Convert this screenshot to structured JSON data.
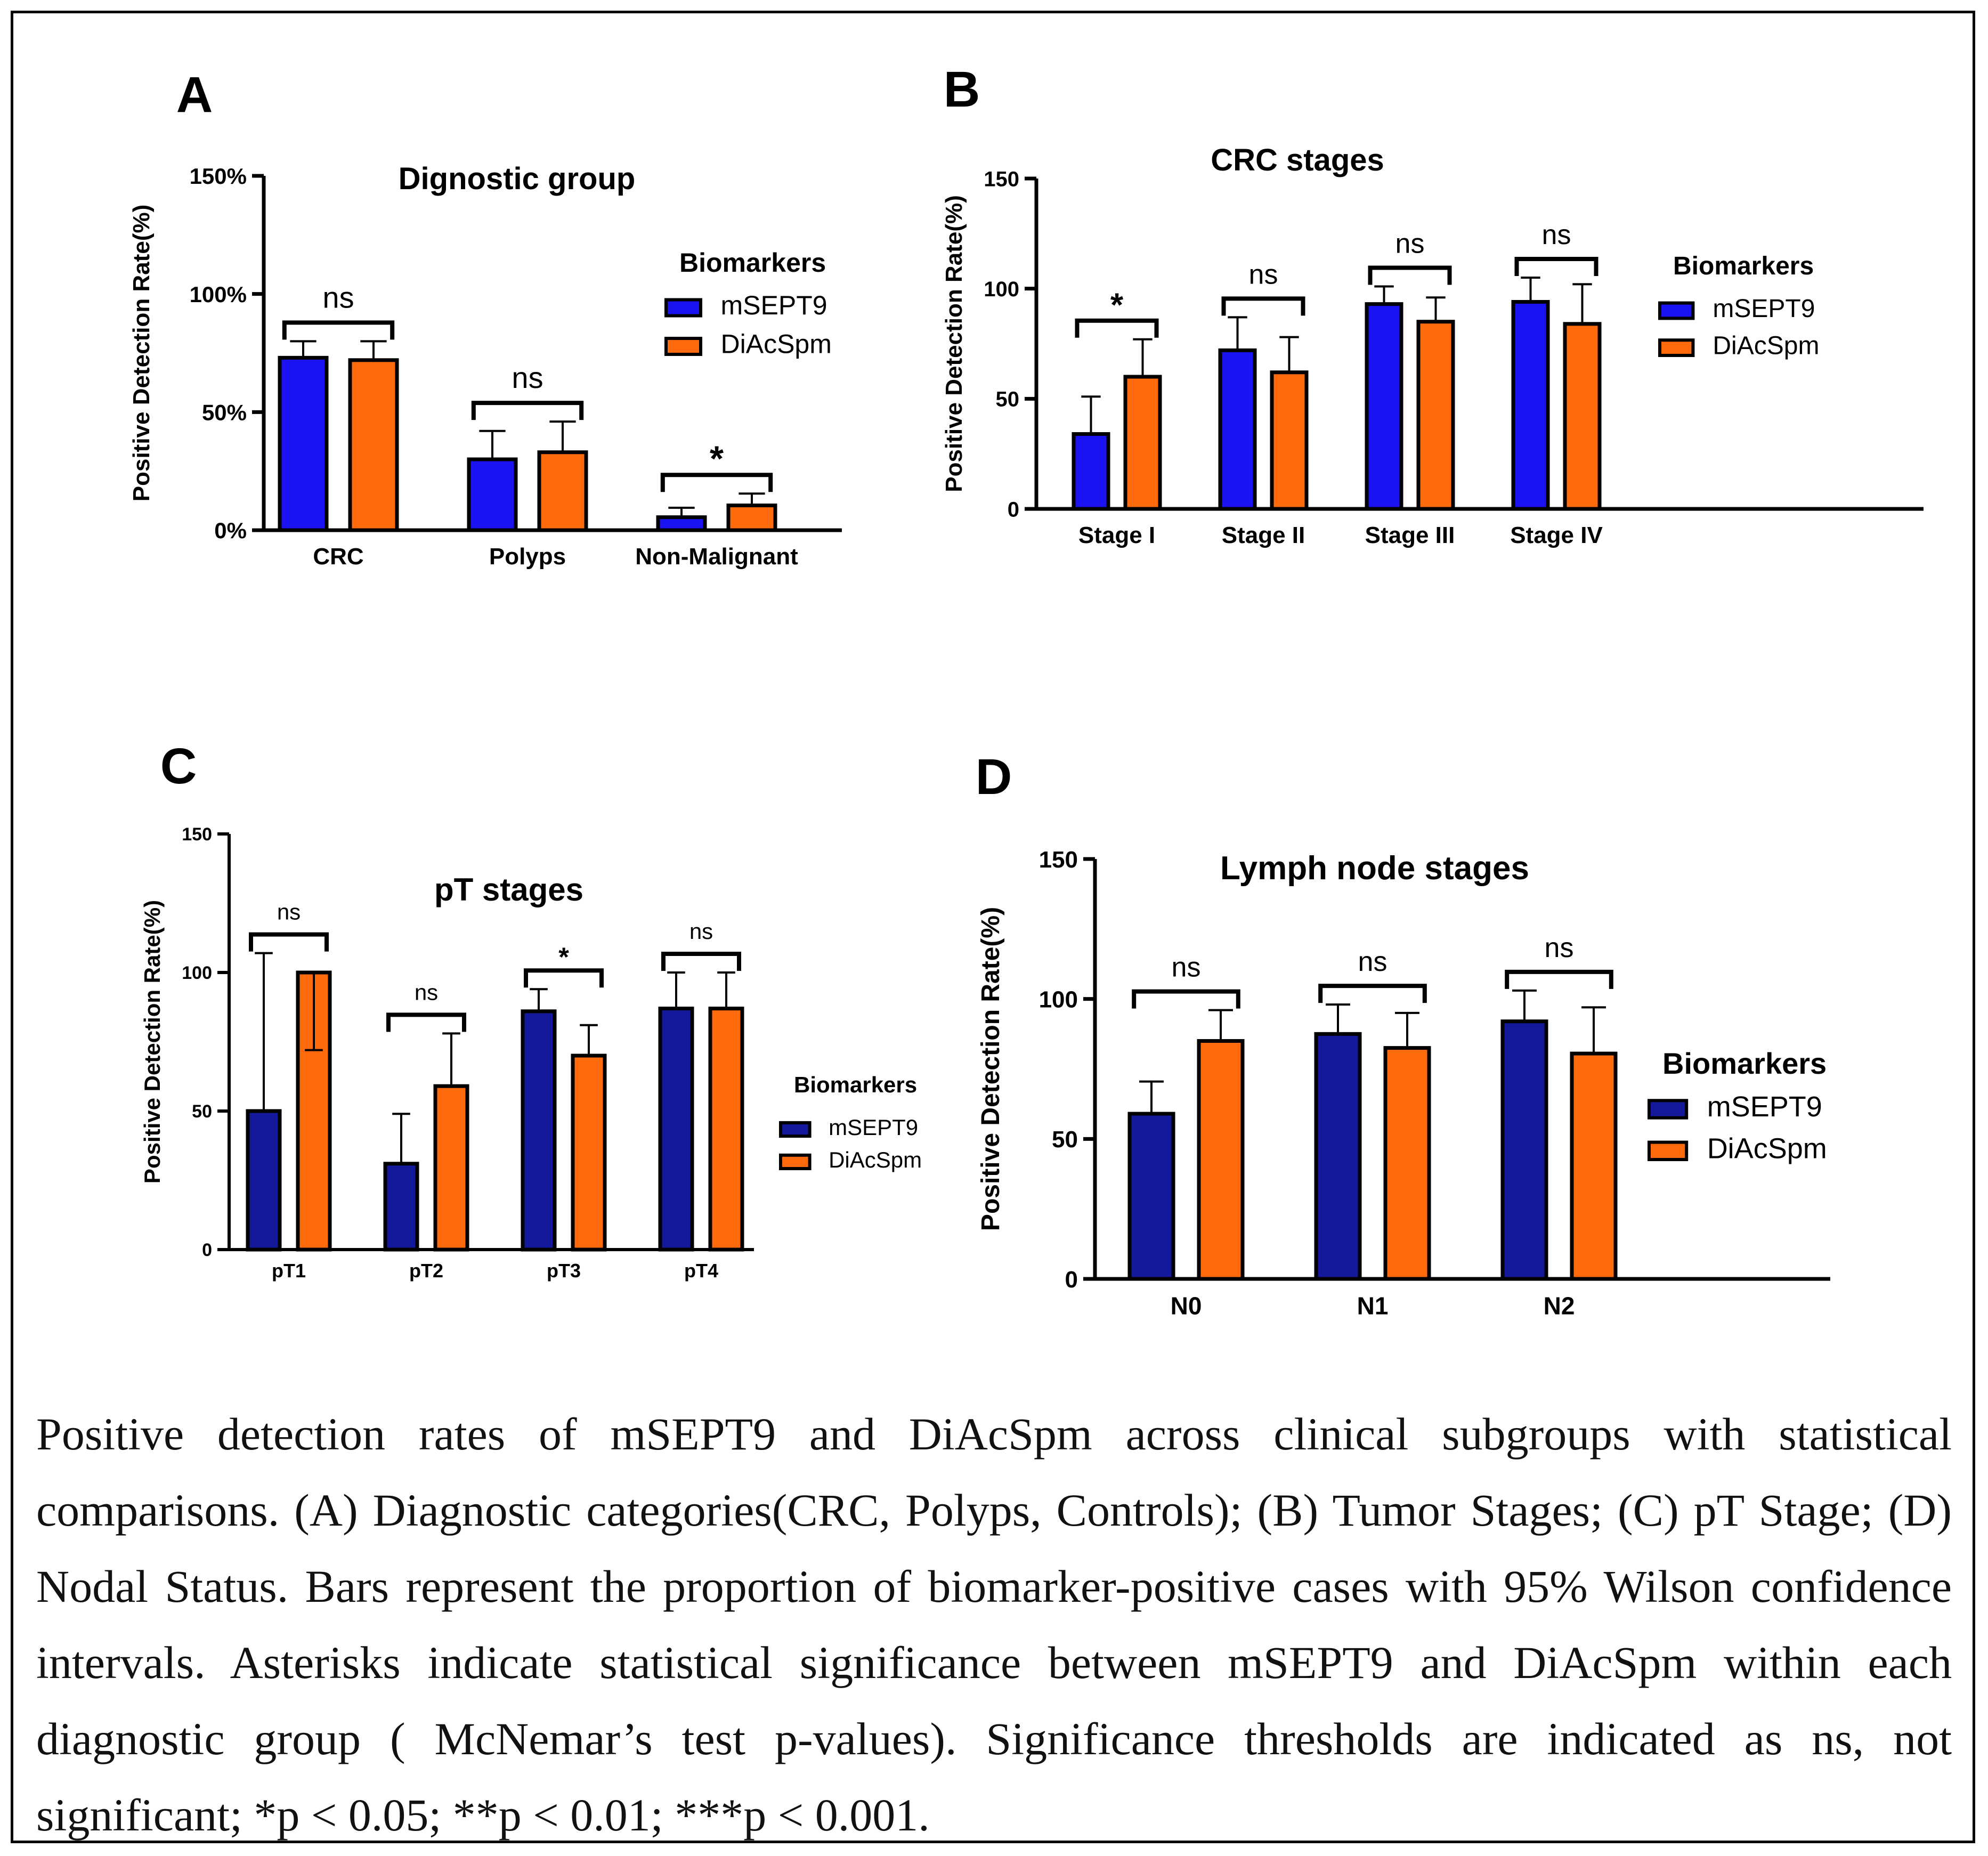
{
  "caption": "Positive detection rates of mSEPT9 and DiAcSpm across clinical subgroups with statistical comparisons. (A) Diagnostic categories(CRC, Polyps, Controls); (B) Tumor Stages; (C) pT Stage; (D) Nodal Status. Bars represent the proportion of biomarker-positive cases with 95% Wilson confidence intervals. Asterisks indicate statistical significance between mSEPT9 and DiAcSpm within each diagnostic group ( McNemar’s test p-values). Significance thresholds are indicated as ns, not significant; *p < 0.05; **p < 0.01; ***p < 0.001.",
  "colors": {
    "mSEPT9_bright": "#1a12f0",
    "mSEPT9_navy": "#13199a",
    "DiAcSpm": "#ff6a0c"
  },
  "chart_data": [
    {
      "panel": "A",
      "type": "bar",
      "title": "Dignostic group",
      "ylabel": "Positive Detection Rate(%)",
      "categories": [
        "CRC",
        "Polyps",
        "Non-Malignant"
      ],
      "ylim": [
        0,
        150
      ],
      "yticks": [
        0,
        50,
        100,
        150
      ],
      "ytick_labels": [
        "0%",
        "50%",
        "100%",
        "150%"
      ],
      "legend_title": "Biomarkers",
      "series": [
        {
          "name": "mSEPT9",
          "color": "#1a12f0",
          "values": [
            73,
            30,
            5.5
          ],
          "err_upper": [
            80,
            42,
            9.5
          ],
          "err_lower": [
            null,
            null,
            null
          ]
        },
        {
          "name": "DiAcSpm",
          "color": "#ff6a0c",
          "values": [
            72,
            33,
            10.5
          ],
          "err_upper": [
            80,
            46,
            15.5
          ],
          "err_lower": [
            null,
            null,
            null
          ]
        }
      ],
      "significance": [
        "ns",
        "ns",
        "*"
      ],
      "grid": false
    },
    {
      "panel": "B",
      "type": "bar",
      "title": "CRC stages",
      "ylabel": "Positive Detection Rate(%)",
      "categories": [
        "Stage I",
        "Stage II",
        "Stage III",
        "Stage IV"
      ],
      "ylim": [
        0,
        150
      ],
      "yticks": [
        0,
        50,
        100,
        150
      ],
      "ytick_labels": [
        "0",
        "50",
        "100",
        "150"
      ],
      "legend_title": "Biomarkers",
      "series": [
        {
          "name": "mSEPT9",
          "color": "#1a12f0",
          "values": [
            34,
            72,
            93,
            94
          ],
          "err_upper": [
            51,
            87,
            101,
            105
          ],
          "err_lower": [
            null,
            null,
            null,
            null
          ]
        },
        {
          "name": "DiAcSpm",
          "color": "#ff6a0c",
          "values": [
            60,
            62,
            85,
            84
          ],
          "err_upper": [
            77,
            78,
            96,
            102
          ],
          "err_lower": [
            null,
            null,
            null,
            null
          ]
        }
      ],
      "significance": [
        "*",
        "ns",
        "ns",
        "ns"
      ],
      "grid": false
    },
    {
      "panel": "C",
      "type": "bar",
      "title": "pT stages",
      "ylabel": "Positive Detection Rate(%)",
      "categories": [
        "pT1",
        "pT2",
        "pT3",
        "pT4"
      ],
      "ylim": [
        0,
        150
      ],
      "yticks": [
        0,
        50,
        100,
        150
      ],
      "ytick_labels": [
        "0",
        "50",
        "100",
        "150"
      ],
      "legend_title": "Biomarkers",
      "series": [
        {
          "name": "mSEPT9",
          "color": "#13199a",
          "values": [
            50,
            31,
            86,
            87
          ],
          "err_upper": [
            107,
            49,
            94,
            100
          ],
          "err_lower": [
            null,
            null,
            null,
            null
          ]
        },
        {
          "name": "DiAcSpm",
          "color": "#ff6a0c",
          "values": [
            100,
            59,
            70,
            87
          ],
          "err_upper": [
            null,
            78,
            81,
            100
          ],
          "err_lower": [
            72,
            null,
            null,
            null
          ]
        }
      ],
      "significance": [
        "ns",
        "ns",
        "*",
        "ns"
      ],
      "grid": false
    },
    {
      "panel": "D",
      "type": "bar",
      "title": "Lymph node stages",
      "ylabel": "Positive Detection Rate(%)",
      "categories": [
        "N0",
        "N1",
        "N2"
      ],
      "ylim": [
        0,
        150
      ],
      "yticks": [
        0,
        50,
        100,
        150
      ],
      "ytick_labels": [
        "0",
        "50",
        "100",
        "150"
      ],
      "legend_title": "Biomarkers",
      "series": [
        {
          "name": "mSEPT9",
          "color": "#13199a",
          "values": [
            59,
            87.5,
            92
          ],
          "err_upper": [
            70.5,
            98,
            103
          ],
          "err_lower": [
            null,
            null,
            null
          ]
        },
        {
          "name": "DiAcSpm",
          "color": "#ff6a0c",
          "values": [
            85,
            82.5,
            80.5
          ],
          "err_upper": [
            96,
            95,
            97
          ],
          "err_lower": [
            null,
            null,
            null
          ]
        }
      ],
      "significance": [
        "ns",
        "ns",
        "ns"
      ],
      "grid": false
    }
  ]
}
